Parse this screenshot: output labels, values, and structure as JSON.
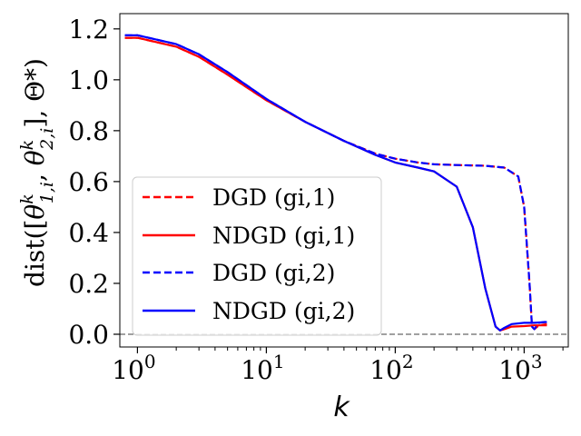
{
  "chart_data": {
    "type": "line",
    "xscale": "log",
    "xlim": [
      0.73,
      2200
    ],
    "ylim": [
      -0.05,
      1.26
    ],
    "xlabel": "k",
    "ylabel_prefix": "dist([",
    "ylabel_suffix": "], Θ*)",
    "ylabel_parts": [
      "θ",
      "k",
      "1,i",
      "θ",
      "k",
      "2,i"
    ],
    "xticks": [
      {
        "value": 1,
        "base": "10",
        "exp": "0"
      },
      {
        "value": 10,
        "base": "10",
        "exp": "1"
      },
      {
        "value": 100,
        "base": "10",
        "exp": "2"
      },
      {
        "value": 1000,
        "base": "10",
        "exp": "3"
      }
    ],
    "yticks": [
      0.0,
      0.2,
      0.4,
      0.6,
      0.8,
      1.0,
      1.2
    ],
    "ytick_labels": [
      "0.0",
      "0.2",
      "0.4",
      "0.6",
      "0.8",
      "1.0",
      "1.2"
    ],
    "reference_line": {
      "y": 0.0,
      "style": "dashed",
      "color": "#808080"
    },
    "series": [
      {
        "name": "DGD (gi,1)",
        "color": "#ff0000",
        "dash": true,
        "x": [
          0.8,
          1,
          2,
          3,
          5,
          10,
          20,
          40,
          70,
          100,
          150,
          200,
          300,
          500,
          700,
          900,
          1000,
          1100,
          1150,
          1200,
          1300,
          1500
        ],
        "y": [
          1.165,
          1.165,
          1.13,
          1.09,
          1.02,
          0.92,
          0.835,
          0.76,
          0.71,
          0.69,
          0.675,
          0.668,
          0.665,
          0.662,
          0.655,
          0.62,
          0.5,
          0.2,
          0.03,
          0.02,
          0.035,
          0.04
        ]
      },
      {
        "name": "NDGD (gi,1)",
        "color": "#ff0000",
        "dash": false,
        "x": [
          0.8,
          1,
          2,
          3,
          5,
          10,
          20,
          40,
          70,
          100,
          150,
          200,
          300,
          400,
          500,
          600,
          650,
          700,
          800,
          1000,
          1200,
          1500
        ],
        "y": [
          1.165,
          1.165,
          1.13,
          1.09,
          1.02,
          0.92,
          0.835,
          0.76,
          0.705,
          0.675,
          0.655,
          0.64,
          0.58,
          0.42,
          0.18,
          0.03,
          0.015,
          0.02,
          0.03,
          0.032,
          0.035,
          0.035
        ]
      },
      {
        "name": "DGD (gi,2)",
        "color": "#0000ff",
        "dash": true,
        "x": [
          0.8,
          1,
          2,
          3,
          5,
          10,
          20,
          40,
          70,
          100,
          150,
          200,
          300,
          500,
          700,
          900,
          1000,
          1100,
          1150,
          1200,
          1300,
          1500
        ],
        "y": [
          1.175,
          1.175,
          1.14,
          1.1,
          1.03,
          0.925,
          0.835,
          0.76,
          0.71,
          0.69,
          0.675,
          0.668,
          0.665,
          0.662,
          0.655,
          0.62,
          0.5,
          0.2,
          0.03,
          0.02,
          0.045,
          0.05
        ]
      },
      {
        "name": "NDGD (gi,2)",
        "color": "#0000ff",
        "dash": false,
        "x": [
          0.8,
          1,
          2,
          3,
          5,
          10,
          20,
          40,
          70,
          100,
          150,
          200,
          300,
          400,
          500,
          600,
          650,
          700,
          800,
          1000,
          1200,
          1500
        ],
        "y": [
          1.175,
          1.175,
          1.14,
          1.1,
          1.03,
          0.925,
          0.835,
          0.76,
          0.705,
          0.675,
          0.655,
          0.64,
          0.58,
          0.42,
          0.18,
          0.03,
          0.015,
          0.025,
          0.04,
          0.045,
          0.045,
          0.048
        ]
      }
    ],
    "legend": {
      "placement": "lower-left",
      "entries": [
        "DGD (gi,1)",
        "NDGD (gi,1)",
        "DGD (gi,2)",
        "NDGD (gi,2)"
      ]
    }
  }
}
